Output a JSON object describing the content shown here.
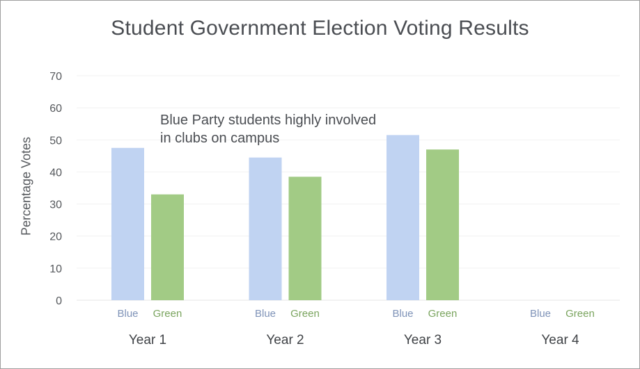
{
  "chart_data": {
    "type": "bar",
    "title": "Student Government Election Voting Results",
    "ylabel": "Percentage Votes",
    "xlabel": "",
    "ylim": [
      0,
      70
    ],
    "yticks": [
      0,
      10,
      20,
      30,
      40,
      50,
      60,
      70
    ],
    "grid": true,
    "categories": [
      "Year 1",
      "Year 2",
      "Year 3",
      "Year 4"
    ],
    "series": [
      {
        "name": "Blue",
        "color": "#c0d3f2",
        "label_color": "#7f93b8",
        "values": [
          47.5,
          44.5,
          51.5,
          null
        ]
      },
      {
        "name": "Green",
        "color": "#a2cb85",
        "label_color": "#7aa45e",
        "values": [
          33,
          38.5,
          47,
          null
        ]
      }
    ],
    "annotation": "Blue Party students highly involved in clubs on campus"
  }
}
